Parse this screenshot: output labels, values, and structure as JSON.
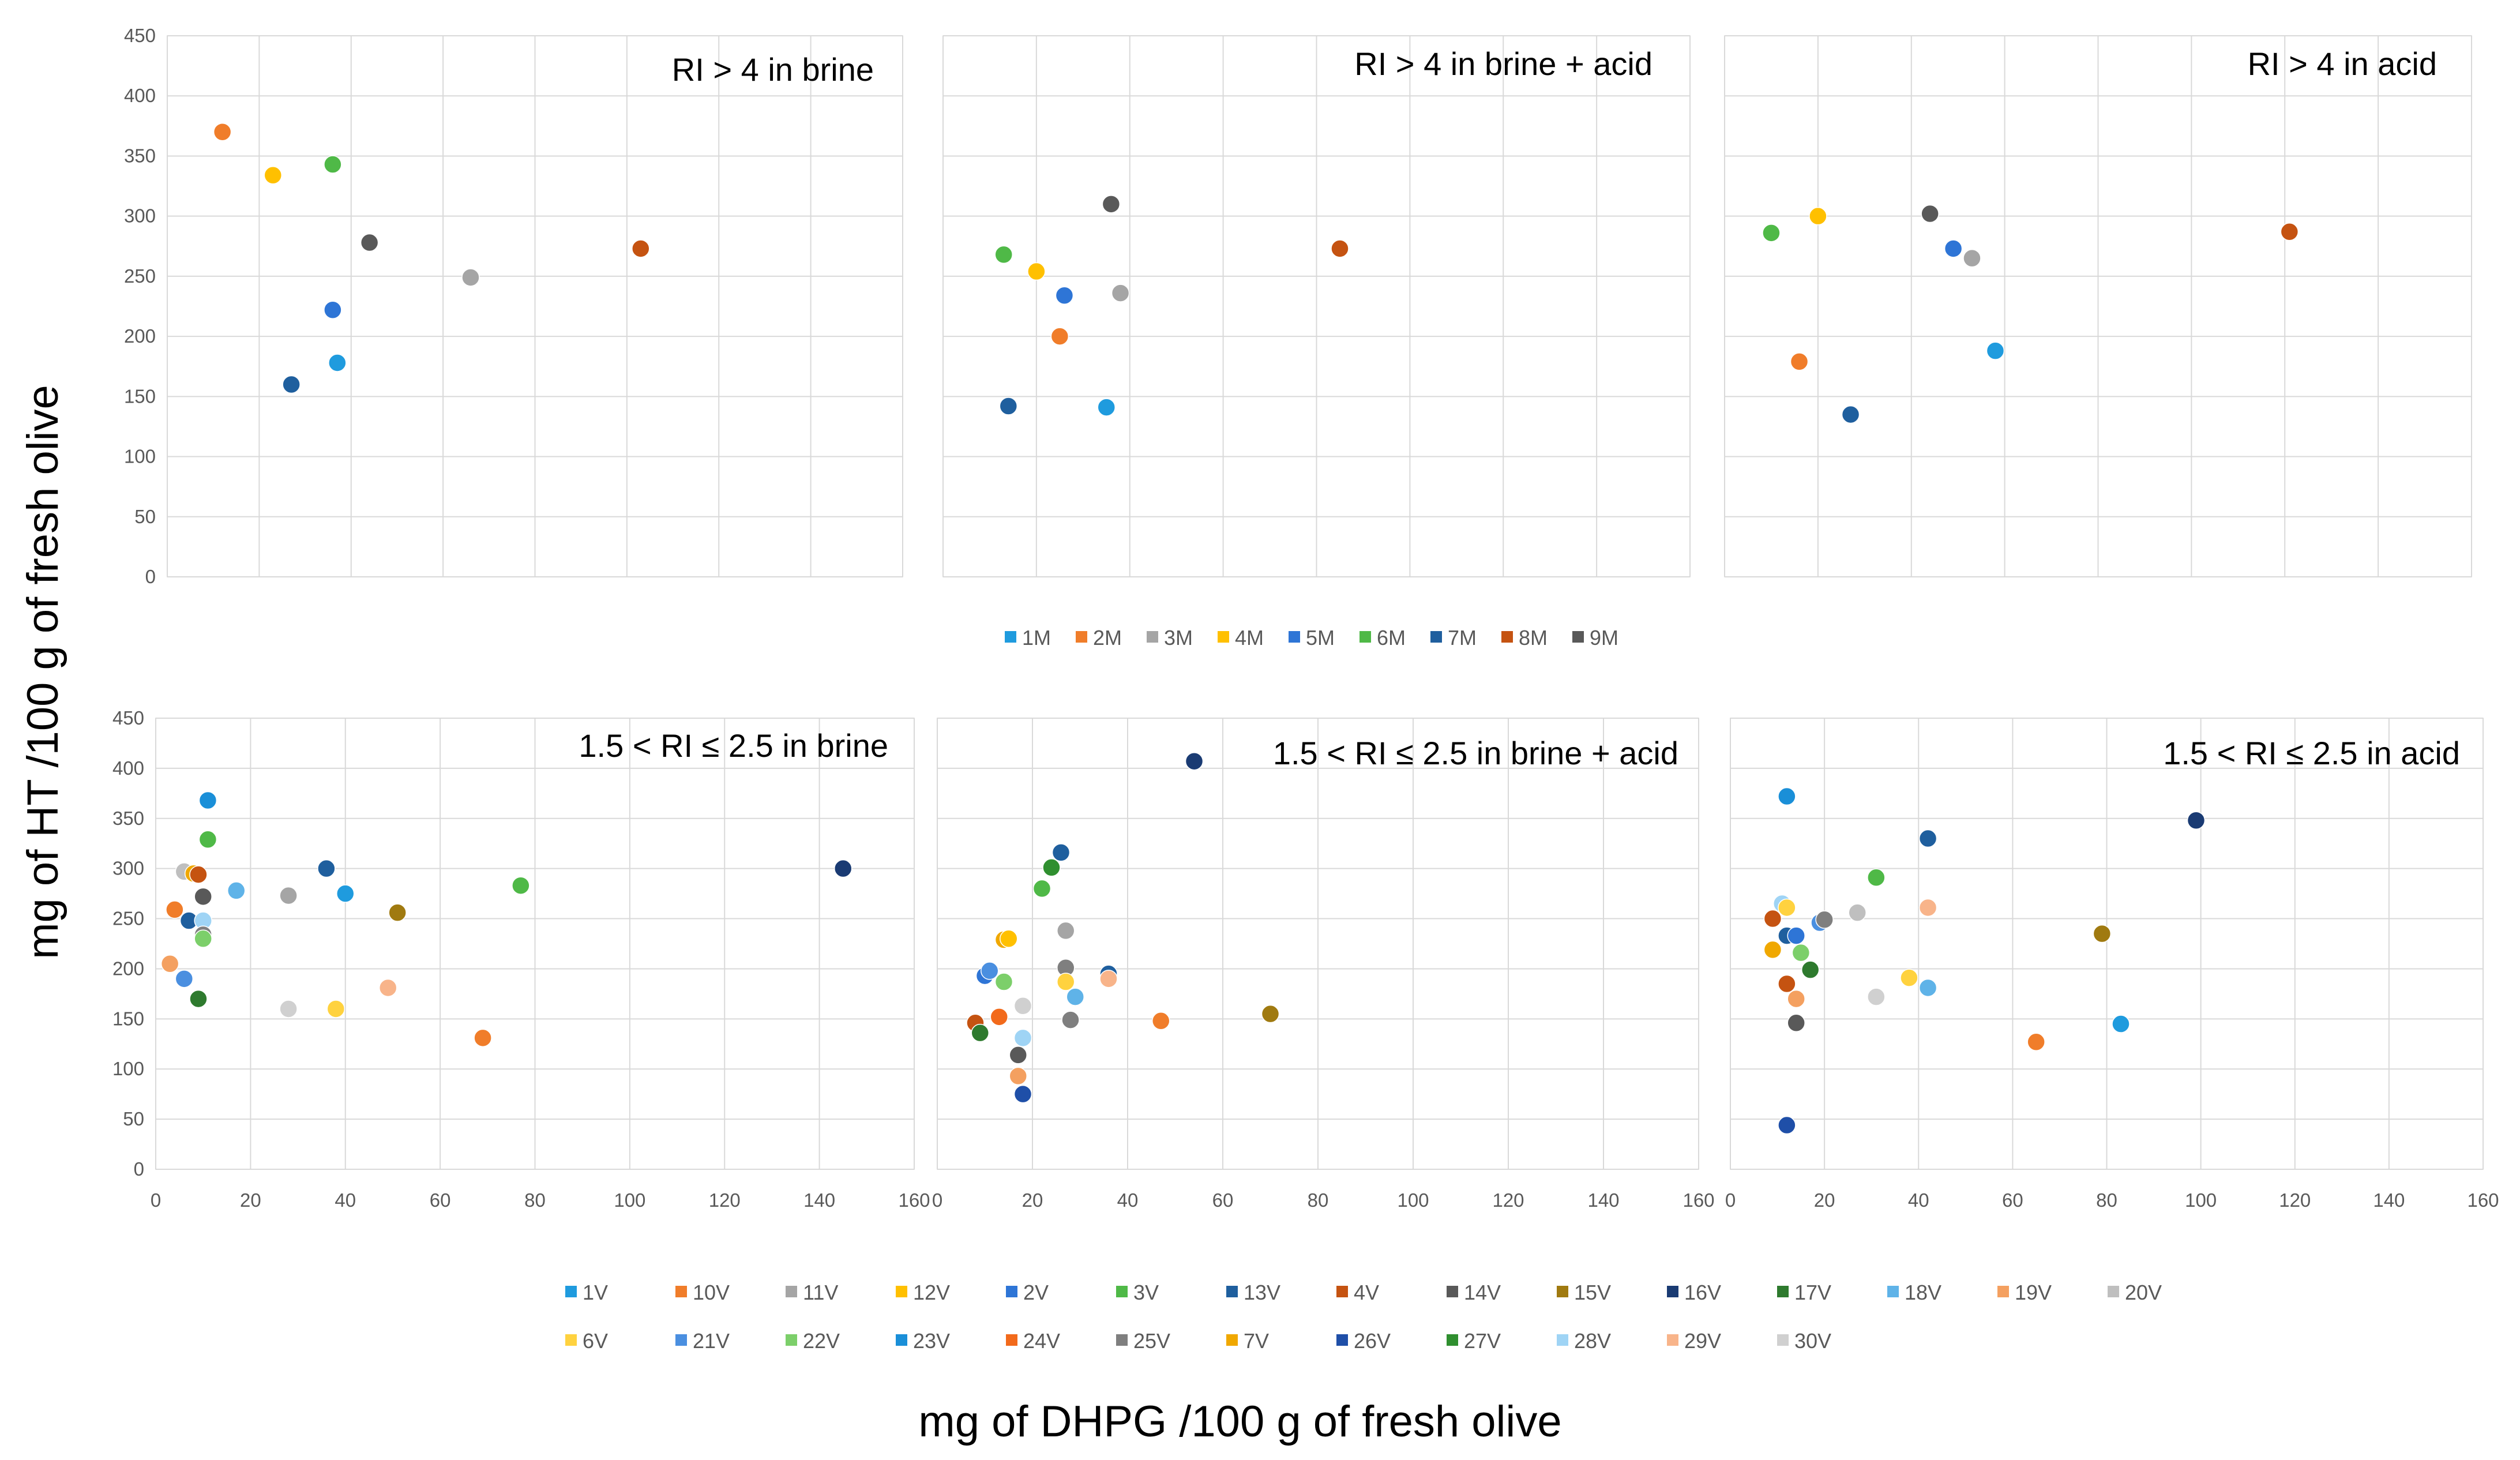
{
  "figure": {
    "ylabel": "mg of HT /100 g of fresh olive",
    "xlabel": "mg of DHPG /100 g of fresh olive"
  },
  "legend_top": [
    {
      "label": "1M",
      "color": "#1f9bde"
    },
    {
      "label": "2M",
      "color": "#f07d2a"
    },
    {
      "label": "3M",
      "color": "#a5a5a5"
    },
    {
      "label": "4M",
      "color": "#ffc000"
    },
    {
      "label": "5M",
      "color": "#2e75d6"
    },
    {
      "label": "6M",
      "color": "#4fb947"
    },
    {
      "label": "7M",
      "color": "#1f5f9e"
    },
    {
      "label": "8M",
      "color": "#c55311"
    },
    {
      "label": "9M",
      "color": "#595959"
    }
  ],
  "legend_bottom": [
    {
      "label": "1V",
      "color": "#1f9bde"
    },
    {
      "label": "10V",
      "color": "#f07d2a"
    },
    {
      "label": "11V",
      "color": "#a5a5a5"
    },
    {
      "label": "12V",
      "color": "#ffc000"
    },
    {
      "label": "2V",
      "color": "#2e75d6"
    },
    {
      "label": "3V",
      "color": "#4fb947"
    },
    {
      "label": "13V",
      "color": "#1f5f9e"
    },
    {
      "label": "4V",
      "color": "#c55311"
    },
    {
      "label": "14V",
      "color": "#595959"
    },
    {
      "label": "15V",
      "color": "#a07a10"
    },
    {
      "label": "16V",
      "color": "#1a3b73"
    },
    {
      "label": "17V",
      "color": "#2e7a2e"
    },
    {
      "label": "18V",
      "color": "#5fb3e8"
    },
    {
      "label": "19V",
      "color": "#f4a060"
    },
    {
      "label": "20V",
      "color": "#bfbfbf"
    },
    {
      "label": "6V",
      "color": "#ffd23f"
    },
    {
      "label": "21V",
      "color": "#4a8fe0"
    },
    {
      "label": "22V",
      "color": "#7ccf6a"
    },
    {
      "label": "23V",
      "color": "#1a8fd8"
    },
    {
      "label": "24V",
      "color": "#f26a1b"
    },
    {
      "label": "25V",
      "color": "#7f7f7f"
    },
    {
      "label": "7V",
      "color": "#f0a800"
    },
    {
      "label": "26V",
      "color": "#1f4fa8"
    },
    {
      "label": "27V",
      "color": "#2f8f2f"
    },
    {
      "label": "28V",
      "color": "#9fd4f5"
    },
    {
      "label": "29V",
      "color": "#f8b48a"
    },
    {
      "label": "30V",
      "color": "#d0d0d0"
    }
  ],
  "chart_data": [
    {
      "type": "scatter",
      "title": "RI > 4 in brine",
      "xlim": [
        0,
        160
      ],
      "ylim": [
        0,
        450
      ],
      "xticks": [],
      "yticks": [
        "0",
        "50",
        "100",
        "150",
        "200",
        "250",
        "300",
        "350",
        "400",
        "450"
      ],
      "points": [
        {
          "label": "2M",
          "x": 12,
          "y": 370
        },
        {
          "label": "4M",
          "x": 23,
          "y": 334
        },
        {
          "label": "6M",
          "x": 36,
          "y": 343
        },
        {
          "label": "9M",
          "x": 44,
          "y": 278
        },
        {
          "label": "5M",
          "x": 36,
          "y": 222
        },
        {
          "label": "1M",
          "x": 37,
          "y": 178
        },
        {
          "label": "7M",
          "x": 27,
          "y": 160
        },
        {
          "label": "3M",
          "x": 66,
          "y": 249
        },
        {
          "label": "8M",
          "x": 103,
          "y": 273
        }
      ]
    },
    {
      "type": "scatter",
      "title": "RI > 4 in brine + acid",
      "xlim": [
        0,
        160
      ],
      "ylim": [
        0,
        450
      ],
      "xticks": [],
      "yticks": [],
      "points": [
        {
          "label": "9M",
          "x": 36,
          "y": 310
        },
        {
          "label": "6M",
          "x": 13,
          "y": 268
        },
        {
          "label": "4M",
          "x": 20,
          "y": 254
        },
        {
          "label": "3M",
          "x": 38,
          "y": 236
        },
        {
          "label": "5M",
          "x": 26,
          "y": 234
        },
        {
          "label": "2M",
          "x": 25,
          "y": 200
        },
        {
          "label": "1M",
          "x": 35,
          "y": 141
        },
        {
          "label": "7M",
          "x": 14,
          "y": 142
        },
        {
          "label": "8M",
          "x": 85,
          "y": 273
        }
      ]
    },
    {
      "type": "scatter",
      "title": "RI > 4 in acid",
      "xlim": [
        0,
        160
      ],
      "ylim": [
        0,
        450
      ],
      "xticks": [],
      "yticks": [],
      "points": [
        {
          "label": "6M",
          "x": 10,
          "y": 286
        },
        {
          "label": "4M",
          "x": 20,
          "y": 300
        },
        {
          "label": "9M",
          "x": 44,
          "y": 302
        },
        {
          "label": "5M",
          "x": 49,
          "y": 273
        },
        {
          "label": "3M",
          "x": 53,
          "y": 265
        },
        {
          "label": "1M",
          "x": 58,
          "y": 188
        },
        {
          "label": "2M",
          "x": 16,
          "y": 179
        },
        {
          "label": "7M",
          "x": 27,
          "y": 135
        },
        {
          "label": "8M",
          "x": 121,
          "y": 287
        }
      ]
    },
    {
      "type": "scatter",
      "title": "1.5 < RI ≤ 2.5 in brine",
      "xlim": [
        0,
        160
      ],
      "ylim": [
        0,
        450
      ],
      "xticks": [
        "0",
        "20",
        "40",
        "60",
        "80",
        "100",
        "120",
        "140",
        "160"
      ],
      "yticks": [
        "0",
        "50",
        "100",
        "150",
        "200",
        "250",
        "300",
        "350",
        "400",
        "450"
      ],
      "points": [
        {
          "label": "23V",
          "x": 11,
          "y": 368
        },
        {
          "label": "3V",
          "x": 11,
          "y": 329
        },
        {
          "label": "20V",
          "x": 6,
          "y": 297
        },
        {
          "label": "7V",
          "x": 8,
          "y": 295
        },
        {
          "label": "4V",
          "x": 9,
          "y": 294
        },
        {
          "label": "14V",
          "x": 10,
          "y": 272
        },
        {
          "label": "18V",
          "x": 17,
          "y": 278
        },
        {
          "label": "10V",
          "x": 4,
          "y": 259
        },
        {
          "label": "13V",
          "x": 7,
          "y": 248
        },
        {
          "label": "28V",
          "x": 10,
          "y": 248
        },
        {
          "label": "25V",
          "x": 10,
          "y": 234
        },
        {
          "label": "22V",
          "x": 10,
          "y": 230
        },
        {
          "label": "19V",
          "x": 3,
          "y": 205
        },
        {
          "label": "21V",
          "x": 6,
          "y": 190
        },
        {
          "label": "17V",
          "x": 9,
          "y": 170
        },
        {
          "label": "13V",
          "x": 36,
          "y": 300
        },
        {
          "label": "11V",
          "x": 28,
          "y": 273
        },
        {
          "label": "1V",
          "x": 40,
          "y": 275
        },
        {
          "label": "15V",
          "x": 51,
          "y": 256
        },
        {
          "label": "30V",
          "x": 28,
          "y": 160
        },
        {
          "label": "6V",
          "x": 38,
          "y": 160
        },
        {
          "label": "29V",
          "x": 49,
          "y": 181
        },
        {
          "label": "10V",
          "x": 69,
          "y": 131
        },
        {
          "label": "3V",
          "x": 77,
          "y": 283
        },
        {
          "label": "16V",
          "x": 145,
          "y": 300
        }
      ]
    },
    {
      "type": "scatter",
      "title": "1.5 < RI ≤ 2.5 in brine + acid",
      "xlim": [
        0,
        160
      ],
      "ylim": [
        0,
        450
      ],
      "xticks": [
        "0",
        "20",
        "40",
        "60",
        "80",
        "100",
        "120",
        "140",
        "160"
      ],
      "yticks": [],
      "points": [
        {
          "label": "16V",
          "x": 54,
          "y": 407
        },
        {
          "label": "13V",
          "x": 26,
          "y": 316
        },
        {
          "label": "27V",
          "x": 24,
          "y": 301
        },
        {
          "label": "3V",
          "x": 22,
          "y": 280
        },
        {
          "label": "11V",
          "x": 27,
          "y": 238
        },
        {
          "label": "7V",
          "x": 14,
          "y": 229
        },
        {
          "label": "12V",
          "x": 15,
          "y": 230
        },
        {
          "label": "25V",
          "x": 27,
          "y": 201
        },
        {
          "label": "2V",
          "x": 10,
          "y": 193
        },
        {
          "label": "21V",
          "x": 11,
          "y": 198
        },
        {
          "label": "22V",
          "x": 14,
          "y": 187
        },
        {
          "label": "6V",
          "x": 27,
          "y": 187
        },
        {
          "label": "18V",
          "x": 29,
          "y": 172
        },
        {
          "label": "13V",
          "x": 36,
          "y": 195
        },
        {
          "label": "29V",
          "x": 36,
          "y": 190
        },
        {
          "label": "30V",
          "x": 18,
          "y": 163
        },
        {
          "label": "4V",
          "x": 8,
          "y": 146
        },
        {
          "label": "24V",
          "x": 13,
          "y": 152
        },
        {
          "label": "17V",
          "x": 9,
          "y": 136
        },
        {
          "label": "25V",
          "x": 28,
          "y": 149
        },
        {
          "label": "10V",
          "x": 47,
          "y": 148
        },
        {
          "label": "28V",
          "x": 18,
          "y": 131
        },
        {
          "label": "14V",
          "x": 17,
          "y": 114
        },
        {
          "label": "19V",
          "x": 17,
          "y": 93
        },
        {
          "label": "26V",
          "x": 18,
          "y": 75
        },
        {
          "label": "15V",
          "x": 70,
          "y": 155
        }
      ]
    },
    {
      "type": "scatter",
      "title": "1.5 < RI ≤ 2.5 in acid",
      "xlim": [
        0,
        160
      ],
      "ylim": [
        0,
        450
      ],
      "xticks": [
        "0",
        "20",
        "40",
        "60",
        "80",
        "100",
        "120",
        "140",
        "160"
      ],
      "yticks": [],
      "points": [
        {
          "label": "23V",
          "x": 12,
          "y": 372
        },
        {
          "label": "13V",
          "x": 42,
          "y": 330
        },
        {
          "label": "16V",
          "x": 99,
          "y": 348
        },
        {
          "label": "3V",
          "x": 31,
          "y": 291
        },
        {
          "label": "28V",
          "x": 11,
          "y": 265
        },
        {
          "label": "6V",
          "x": 12,
          "y": 261
        },
        {
          "label": "29V",
          "x": 42,
          "y": 261
        },
        {
          "label": "20V",
          "x": 27,
          "y": 256
        },
        {
          "label": "4V",
          "x": 9,
          "y": 250
        },
        {
          "label": "21V",
          "x": 19,
          "y": 246
        },
        {
          "label": "25V",
          "x": 20,
          "y": 249
        },
        {
          "label": "13V",
          "x": 12,
          "y": 233
        },
        {
          "label": "2V",
          "x": 14,
          "y": 233
        },
        {
          "label": "7V",
          "x": 9,
          "y": 219
        },
        {
          "label": "22V",
          "x": 15,
          "y": 216
        },
        {
          "label": "17V",
          "x": 17,
          "y": 199
        },
        {
          "label": "6V",
          "x": 38,
          "y": 191
        },
        {
          "label": "18V",
          "x": 42,
          "y": 181
        },
        {
          "label": "4V",
          "x": 12,
          "y": 185
        },
        {
          "label": "30V",
          "x": 31,
          "y": 172
        },
        {
          "label": "19V",
          "x": 14,
          "y": 170
        },
        {
          "label": "14V",
          "x": 14,
          "y": 146
        },
        {
          "label": "15V",
          "x": 79,
          "y": 235
        },
        {
          "label": "1V",
          "x": 83,
          "y": 145
        },
        {
          "label": "10V",
          "x": 65,
          "y": 127
        },
        {
          "label": "26V",
          "x": 12,
          "y": 44
        }
      ]
    }
  ]
}
